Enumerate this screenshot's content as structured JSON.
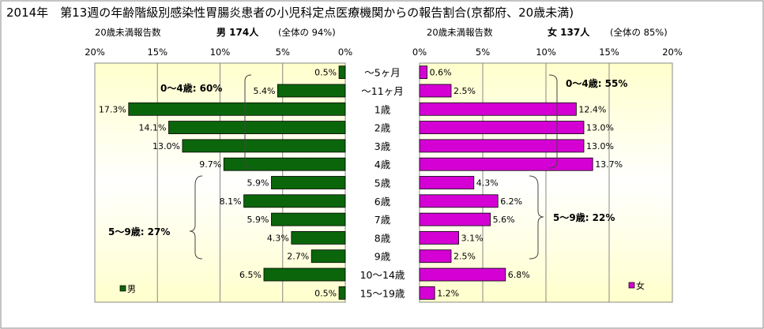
{
  "title": "2014年　第13週の年齢階級別感染性胃腸炎患者の小児科定点医療機関からの報告割合(京都府、20歳未満)",
  "colors": {
    "male": "#0B660B",
    "female": "#D400D4",
    "plot_bg_edge": "#FFFFCC"
  },
  "male": {
    "subtitle_left": "20歳未満報告数",
    "subtitle_main": "男 174人",
    "subtitle_ratio": "(全体の 94%)",
    "legend": "男",
    "group1_label": "0～4歳: 60%",
    "group2_label": "5～9歳: 27%"
  },
  "female": {
    "subtitle_left": "20歳未満報告数",
    "subtitle_main": "女 137人",
    "subtitle_ratio": "(全体の 85%)",
    "legend": "女",
    "group1_label": "0～4歳: 55%",
    "group2_label": "5～9歳: 22%"
  },
  "chart_data": [
    {
      "type": "bar",
      "orientation": "horizontal",
      "xaxis_reversed": true,
      "categories": [
        "～5ヶ月",
        "～11ヶ月",
        "1歳",
        "2歳",
        "3歳",
        "4歳",
        "5歳",
        "6歳",
        "7歳",
        "8歳",
        "9歳",
        "10～14歳",
        "15～19歳"
      ],
      "series": [
        {
          "name": "男",
          "values": [
            0.5,
            5.4,
            17.3,
            14.1,
            13.0,
            9.7,
            5.9,
            8.1,
            5.9,
            4.3,
            2.7,
            6.5,
            0.5
          ]
        }
      ],
      "data_labels": [
        "0.5%",
        "5.4%",
        "17.3%",
        "14.1%",
        "13.0%",
        "9.7%",
        "5.9%",
        "8.1%",
        "5.9%",
        "4.3%",
        "2.7%",
        "6.5%",
        "0.5%"
      ],
      "xlim": [
        0,
        20
      ],
      "xticks": [
        "20%",
        "15%",
        "10%",
        "5%",
        "0%"
      ],
      "grid": true,
      "legend_position": "bottom-left"
    },
    {
      "type": "bar",
      "orientation": "horizontal",
      "categories": [
        "～5ヶ月",
        "～11ヶ月",
        "1歳",
        "2歳",
        "3歳",
        "4歳",
        "5歳",
        "6歳",
        "7歳",
        "8歳",
        "9歳",
        "10～14歳",
        "15～19歳"
      ],
      "series": [
        {
          "name": "女",
          "values": [
            0.6,
            2.5,
            12.4,
            13.0,
            13.0,
            13.7,
            4.3,
            6.2,
            5.6,
            3.1,
            2.5,
            6.8,
            1.2
          ]
        }
      ],
      "data_labels": [
        "0.6%",
        "2.5%",
        "12.4%",
        "13.0%",
        "13.0%",
        "13.7%",
        "4.3%",
        "6.2%",
        "5.6%",
        "3.1%",
        "2.5%",
        "6.8%",
        "1.2%"
      ],
      "xlim": [
        0,
        20
      ],
      "xticks": [
        "0%",
        "5%",
        "10%",
        "15%",
        "20%"
      ],
      "grid": true,
      "legend_position": "bottom-right"
    }
  ]
}
